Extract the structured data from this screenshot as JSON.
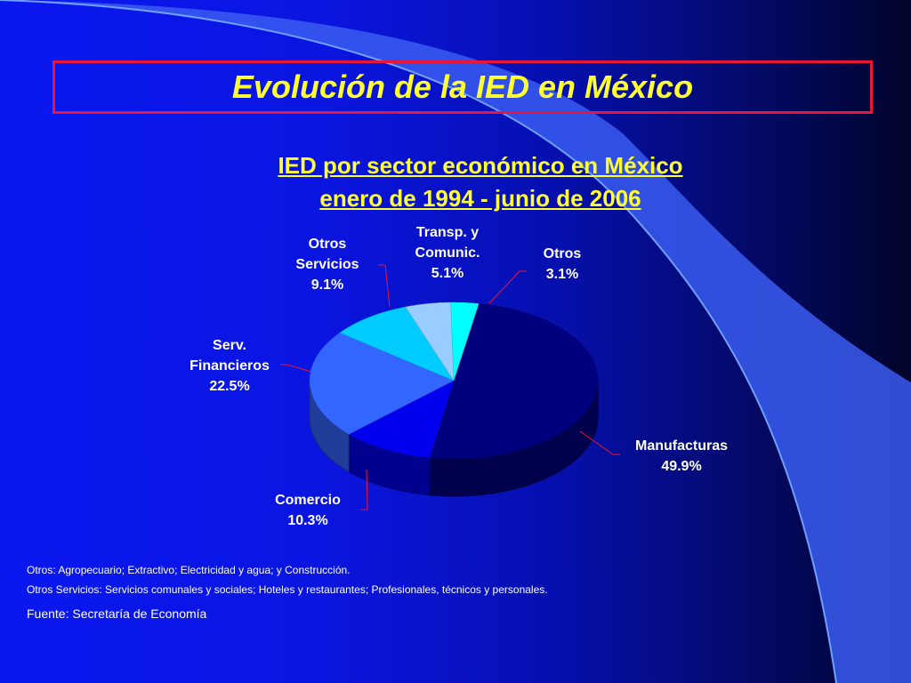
{
  "slide": {
    "title": "Evolución de la IED en México",
    "notes": [
      "Otros: Agropecuario; Extractivo; Electricidad y agua; y Construcción.",
      "Otros Servicios: Servicios comunales y sociales; Hoteles y restaurantes; Profesionales, técnicos y personales."
    ],
    "source": "Fuente: Secretaría de Economía"
  },
  "colors": {
    "title_text": "#ffff33",
    "title_border": "#e8173a",
    "background_left": "#0a18f0",
    "background_right": "#02042a",
    "leader_lines": "#e8173a"
  },
  "chart_data": {
    "type": "pie",
    "style": "3d",
    "title_lines": [
      "IED por sector económico en México",
      "enero de 1994 - junio de 2006"
    ],
    "slices": [
      {
        "name": "Manufacturas",
        "label_lines": [
          "Manufacturas"
        ],
        "value": 49.9,
        "value_label": "49.9%",
        "color": "#00007e"
      },
      {
        "name": "Comercio",
        "label_lines": [
          "Comercio"
        ],
        "value": 10.3,
        "value_label": "10.3%",
        "color": "#0000ee"
      },
      {
        "name": "Serv. Financieros",
        "label_lines": [
          "Serv.",
          "Financieros"
        ],
        "value": 22.5,
        "value_label": "22.5%",
        "color": "#3366ff"
      },
      {
        "name": "Otros Servicios",
        "label_lines": [
          "Otros",
          "Servicios"
        ],
        "value": 9.1,
        "value_label": "9.1%",
        "color": "#00ccff"
      },
      {
        "name": "Transp. y Comunic.",
        "label_lines": [
          "Transp. y",
          "Comunic."
        ],
        "value": 5.1,
        "value_label": "5.1%",
        "color": "#99ccff"
      },
      {
        "name": "Otros",
        "label_lines": [
          "Otros"
        ],
        "value": 3.1,
        "value_label": "3.1%",
        "color": "#00ffff"
      }
    ]
  }
}
